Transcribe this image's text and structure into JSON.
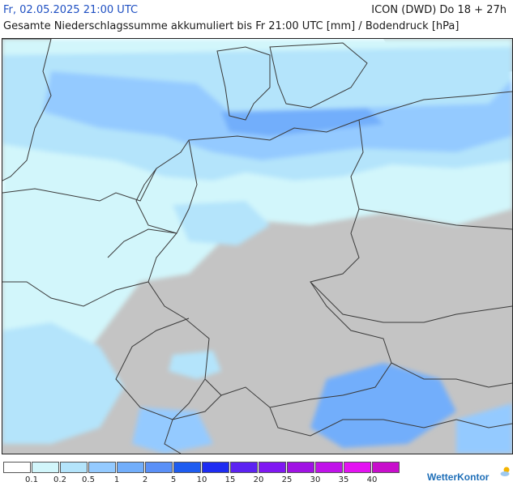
{
  "header": {
    "date": "Fr, 02.05.2025 21:00 UTC",
    "title": "Gesamte Niederschlagssumme akkumuliert bis Fr 21:00 UTC [mm] / Bodendruck [hPa]",
    "model": "ICON (DWD) Do 18 + 27h"
  },
  "map": {
    "land_color": "#c4c4c4",
    "sea_color": "#ffffff",
    "border_color": "#3a3a3a"
  },
  "legend": {
    "colors": [
      "#ffffff",
      "#d2f6fb",
      "#b4e4fb",
      "#94caff",
      "#72aefb",
      "#5a90f7",
      "#1e5cf0",
      "#1e2cf2",
      "#5c22f2",
      "#8018f2",
      "#a012e4",
      "#c012ea",
      "#e412f2",
      "#c80ecc"
    ],
    "labels": [
      "0.1",
      "0.2",
      "0.5",
      "1",
      "2",
      "5",
      "10",
      "15",
      "20",
      "25",
      "30",
      "35",
      "40"
    ]
  },
  "branding": {
    "name": "WetterKontor",
    "icon": "sun-cloud-icon"
  }
}
